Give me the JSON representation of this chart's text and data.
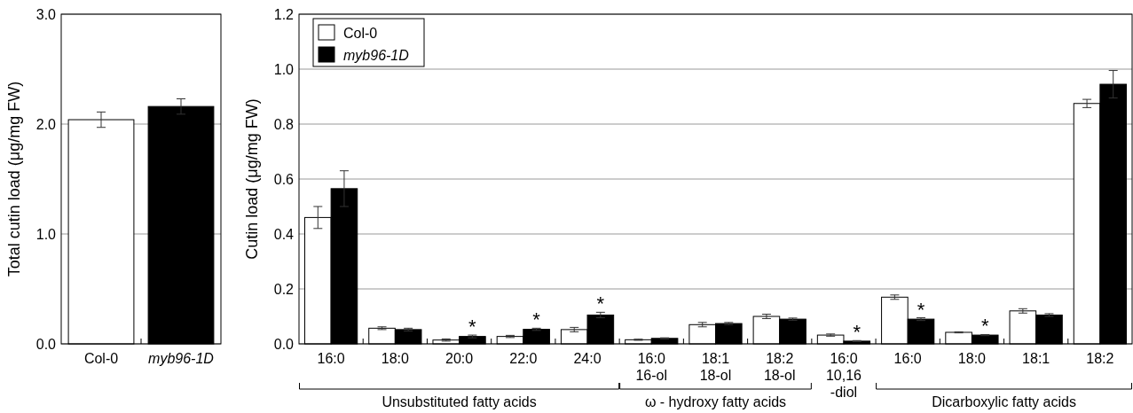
{
  "chart_data": [
    {
      "type": "bar",
      "ylabel": "Total cutin load (μg/mg FW)",
      "categories": [
        "Col-0",
        "myb96-1D"
      ],
      "values": [
        2.04,
        2.16
      ],
      "colors": [
        "#ffffff",
        "#000000"
      ],
      "errors": [
        0.07,
        0.07
      ],
      "ylim": [
        0,
        3
      ],
      "yticks": [
        {
          "value": 0,
          "label": "0.0"
        },
        {
          "value": 1,
          "label": "1.0"
        },
        {
          "value": 2,
          "label": "2.0"
        },
        {
          "value": 3,
          "label": "3.0"
        }
      ],
      "grid": "y"
    },
    {
      "type": "bar",
      "ylabel": "Cutin load (μg/mg FW)",
      "categories": [
        "16:0",
        "18:0",
        "20:0",
        "22:0",
        "24:0",
        "16:0\n16-ol",
        "18:1\n18-ol",
        "18:2\n18-ol",
        "16:0\n10,16\n-diol",
        "16:0",
        "18:0",
        "18:1",
        "18:2"
      ],
      "series": [
        {
          "name": "Col-0",
          "color": "#ffffff",
          "values": [
            0.46,
            0.057,
            0.014,
            0.027,
            0.052,
            0.015,
            0.07,
            0.1,
            0.032,
            0.17,
            0.042,
            0.12,
            0.875
          ],
          "errors": [
            0.04,
            0.005,
            0.004,
            0.004,
            0.008,
            0.002,
            0.008,
            0.008,
            0.004,
            0.008,
            0.002,
            0.008,
            0.015
          ]
        },
        {
          "name": "myb96-1D",
          "color": "#000000",
          "values": [
            0.565,
            0.052,
            0.027,
            0.053,
            0.105,
            0.02,
            0.074,
            0.09,
            0.01,
            0.09,
            0.032,
            0.105,
            0.945
          ],
          "errors": [
            0.065,
            0.005,
            0.005,
            0.004,
            0.01,
            0.002,
            0.004,
            0.004,
            0.002,
            0.005,
            0.002,
            0.005,
            0.05
          ],
          "value_labels": [
            null,
            null,
            "*",
            "*",
            "*",
            null,
            null,
            null,
            "*",
            "*",
            "*",
            null,
            null
          ]
        }
      ],
      "ylim": [
        0,
        1.2
      ],
      "yticks": [
        {
          "value": 0,
          "label": "0.0"
        },
        {
          "value": 0.2,
          "label": "0.2"
        },
        {
          "value": 0.4,
          "label": "0.4"
        },
        {
          "value": 0.6,
          "label": "0.6"
        },
        {
          "value": 0.8,
          "label": "0.8"
        },
        {
          "value": 1,
          "label": "1.0"
        },
        {
          "value": 1.2,
          "label": "1.2"
        }
      ],
      "grid": "y",
      "legend": "top left",
      "annotations": [
        "Unsubstituted fatty acids",
        "ω - hydroxy fatty acids",
        "Dicarboxylic fatty acids"
      ]
    }
  ]
}
